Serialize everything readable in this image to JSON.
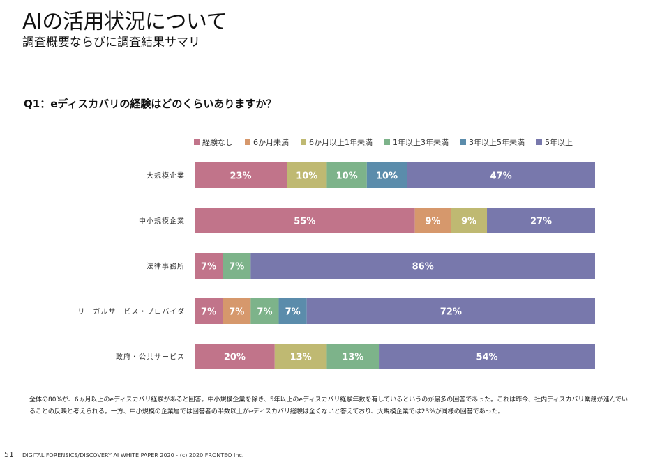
{
  "header": {
    "title": "AIの活用状況について",
    "subtitle": "調査概要ならびに調査結果サマリ"
  },
  "question": "Q1：eディスカバリの経験はどのくらいありますか？",
  "chart_data": {
    "type": "bar",
    "orientation": "horizontal",
    "stacked": true,
    "normalized": true,
    "categories": [
      "大規模企業",
      "中小規模企業",
      "法律事務所",
      "リーガルサービス・プロバイダ",
      "政府・公共サービス"
    ],
    "series": [
      {
        "name": "経験なし",
        "color": "#c1748a",
        "values": [
          23,
          55,
          7,
          7,
          20
        ]
      },
      {
        "name": "6か月未満",
        "color": "#d6986c",
        "values": [
          0,
          9,
          0,
          7,
          0
        ]
      },
      {
        "name": "6か月以上1年未満",
        "color": "#bfb972",
        "values": [
          10,
          9,
          0,
          0,
          13
        ]
      },
      {
        "name": "1年以上3年未満",
        "color": "#7db38a",
        "values": [
          10,
          0,
          7,
          7,
          13
        ]
      },
      {
        "name": "3年以上5年未満",
        "color": "#5b8cab",
        "values": [
          10,
          0,
          0,
          7,
          0
        ]
      },
      {
        "name": "5年以上",
        "color": "#7878ac",
        "values": [
          47,
          27,
          86,
          72,
          54
        ]
      }
    ],
    "label_suffix": "%",
    "legend_position": "top",
    "grid": false
  },
  "note": "全体の80%が、6ヵ月以上のeディスカバリ経験があると回答。中小規模企業を除き、5年以上のeディスカバリ経験年数を有しているというのが最多の回答であった。これは昨今、社内ディスカバリ業務が進んでいることの反映と考えられる。一方、中小規模の企業層では回答者の半数以上がeディスカバリ経験は全くないと答えており、大規模企業では23%が同様の回答であった。",
  "footer": {
    "page_number": "51",
    "text": "DIGITAL FORENSICS/DISCOVERY AI WHITE PAPER 2020 - (c) 2020 FRONTEO Inc."
  }
}
